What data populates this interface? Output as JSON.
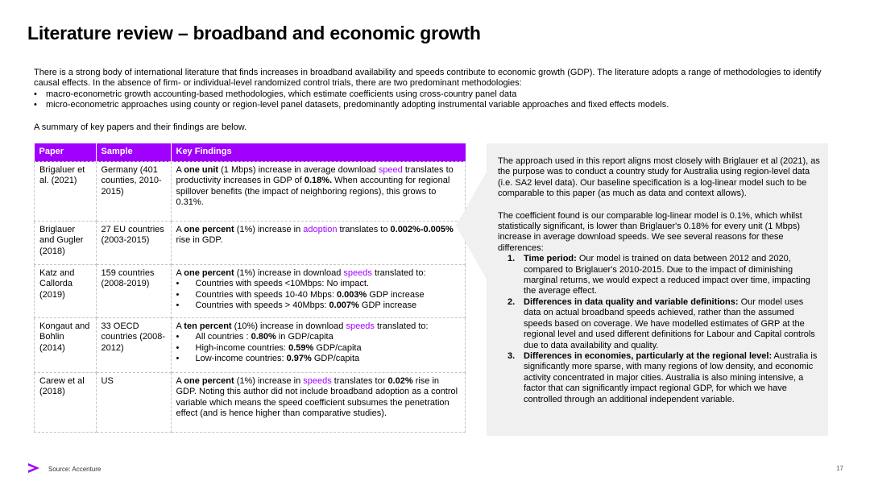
{
  "title": "Literature review – broadband and economic growth",
  "intro": {
    "paragraph": "There is a strong body of international literature that finds increases in broadband availability and speeds contribute to economic growth (GDP).  The literature adopts a range of methodologies to identify causal effects. In the absence of firm- or individual-level randomized control trials, there are two predominant methodologies:",
    "bullets": [
      "macro-econometric growth accounting-based methodologies, which estimate coefficients using cross-country panel data",
      "micro-econometric approaches using county or region-level panel datasets, predominantly adopting instrumental variable approaches and fixed effects models."
    ],
    "summary": "A summary of key papers and their findings are below."
  },
  "table": {
    "headers": [
      "Paper",
      "Sample",
      "Key Findings"
    ],
    "rows": [
      {
        "paper": "Brigaluer et al. (2021)",
        "sample": "Germany (401 counties, 2010-2015)",
        "f": [
          "A ",
          "one unit",
          " (1 Mbps) increase in average download ",
          "speed",
          " translates to productivity increases in GDP of ",
          "0.18%.",
          " When accounting for regional spillover benefits (the impact of neighboring regions), this grows to 0.31%."
        ]
      },
      {
        "paper": "Briglauer and Gugler (2018)",
        "sample": "27 EU countries (2003-2015)",
        "f": [
          "A ",
          "one percent",
          " (1%) increase in ",
          "adoption",
          " translates to ",
          "0.002%-0.005%",
          " rise in GDP."
        ]
      },
      {
        "paper": "Katz and Callorda (2019)",
        "sample": "159 countries (2008-2019)",
        "f": [
          "A ",
          "one percent",
          " (1%) increase in download ",
          "speeds",
          " translated to:"
        ],
        "list": [
          [
            "Countries with speeds <10Mbps: No impact.",
            "",
            ""
          ],
          [
            "Countries with speeds 10-40 Mbps: ",
            "0.003%",
            " GDP increase"
          ],
          [
            "Countries with speeds > 40Mbps: ",
            "0.007%",
            " GDP increase"
          ]
        ]
      },
      {
        "paper": "Kongaut and Bohlin (2014)",
        "sample": "33 OECD countries (2008-2012)",
        "f": [
          "A ",
          "ten percent",
          " (10%) increase in download ",
          "speeds",
          " translated to:"
        ],
        "list": [
          [
            "All countries : ",
            "0.80%",
            " in GDP/capita"
          ],
          [
            "High-income countries: ",
            "0.59%",
            " GDP/capita"
          ],
          [
            "Low-income countries: ",
            "0.97%",
            " GDP/capita"
          ]
        ]
      },
      {
        "paper": "Carew et al (2018)",
        "sample": "US",
        "f": [
          "A ",
          "one percent",
          " (1%) increase in ",
          "speeds",
          " translates tor ",
          "0.02%",
          " rise in GDP. Noting this author did not include broadband adoption as a control variable which means the speed coefficient subsumes the penetration effect (and is hence higher than comparative studies)."
        ]
      }
    ]
  },
  "panel": {
    "p1": "The approach used in this report aligns most closely with Briglauer et al (2021), as the purpose was to conduct a country study for Australia using region-level data (i.e. SA2 level data). Our baseline specification is a log-linear model such to be comparable to this paper (as much as data and context allows).",
    "p2": "The coefficient found is our comparable log-linear model is 0.1%, which whilst statistically significant, is lower than Briglauer's 0.18% for every unit (1 Mbps) increase in average download speeds. We see several reasons for these differences:",
    "reasons": [
      {
        "num": "1.",
        "title": "Time period:",
        "text": " Our model is trained on data between 2012 and 2020, compared to Briglauer's 2010-2015. Due to the impact of diminishing marginal returns, we would expect a reduced impact over time, impacting the average effect."
      },
      {
        "num": "2.",
        "title": "Differences in data quality and variable definitions:",
        "text": " Our model uses data on actual broadband speeds achieved, rather than the assumed speeds based on coverage. We have modelled estimates of GRP at the regional level and used different definitions for Labour and Capital controls due to data availability and quality."
      },
      {
        "num": "3.",
        "title": "Differences in economies, particularly at the regional level:",
        "text": " Australia is significantly more sparse, with many regions of low density, and economic activity concentrated in major cities. Australia is also mining intensive, a factor that can significantly impact regional GDP, for which we have controlled through an additional independent variable."
      }
    ]
  },
  "footer": {
    "source": "Source: Accenture",
    "page": "17",
    "accent": "#a100ff"
  }
}
